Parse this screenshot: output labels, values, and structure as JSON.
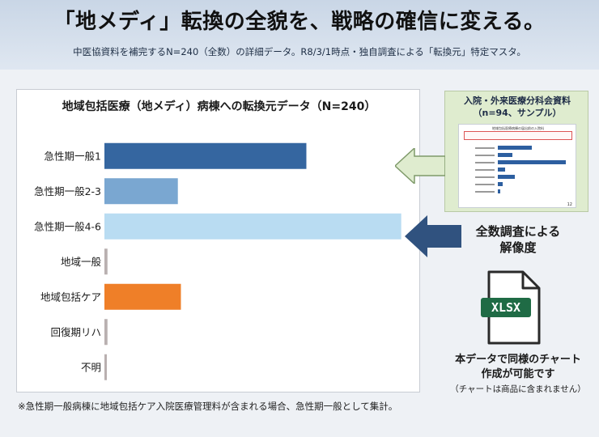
{
  "header": {
    "headline": "「地メディ」転換の全貌を、戦略の確信に変える。",
    "subline": "中医協資料を補完するN=240（全数）の詳細データ。R8/3/1時点・独自調査による「転換元」特定マスタ。"
  },
  "chart_data": {
    "type": "bar",
    "orientation": "horizontal",
    "title": "地域包括医療（地メディ）病棟への転換元データ（N=240）",
    "categories": [
      "急性期一般1",
      "急性期一般2-3",
      "急性期一般4-6",
      "地域一般",
      "地域包括ケア",
      "回復期リハ",
      "不明"
    ],
    "values": [
      66,
      24,
      97,
      1,
      25,
      1,
      0.5
    ],
    "colors": [
      "#3566a0",
      "#7aa7d1",
      "#b9dcf2",
      "#b9b0b0",
      "#ef7f28",
      "#b9b0b0",
      "#b9b0b0"
    ],
    "xlim": [
      0,
      100
    ],
    "grid": false,
    "legend": "none"
  },
  "footnote": "※急性期一般病棟に地域包括ケア入院医療管理料が含まれる場合、急性期一般として集計。",
  "thumbnail": {
    "title_line1": "入院・外来医療分科会資料",
    "title_line2": "（n=94、サンプル）",
    "doc_heading": "地域包括医療病棟の届出前の入院料",
    "page_number": "12",
    "mini_values": [
      28,
      12,
      56,
      6,
      14,
      4,
      2
    ]
  },
  "callout": {
    "line1": "全数調査による",
    "line2": "解像度"
  },
  "file_icon": {
    "icon": "xlsx-file-icon",
    "label": "XLSX",
    "badge_color": "#1f6b45"
  },
  "caption": {
    "line1": "本データで同様のチャート",
    "line2": "作成が可能です",
    "sub": "（チャートは商品に含まれません）"
  },
  "colors": {
    "header_bg": "#c9d6e6",
    "arrow_light": "#dfeccf",
    "arrow_dark": "#30527f"
  }
}
